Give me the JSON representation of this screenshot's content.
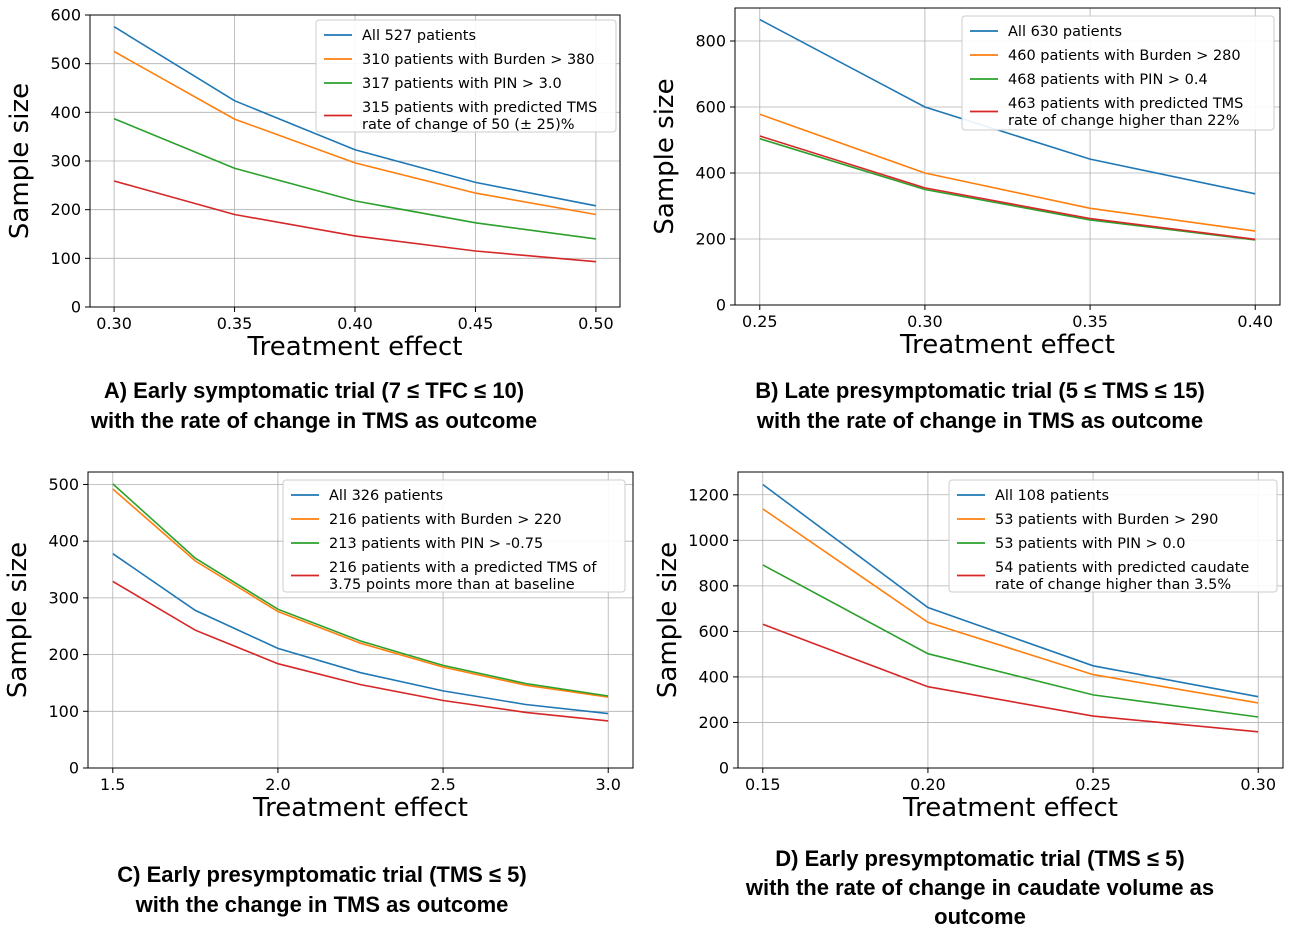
{
  "chart_data": [
    {
      "id": "A",
      "type": "line",
      "xlabel": "Treatment effect",
      "ylabel": "Sample size",
      "x": [
        0.3,
        0.35,
        0.4,
        0.45,
        0.5
      ],
      "xticks": [
        "0.30",
        "0.35",
        "0.40",
        "0.45",
        "0.50"
      ],
      "xlim": [
        0.29,
        0.51
      ],
      "yticks": [
        "0",
        "100",
        "200",
        "300",
        "400",
        "500",
        "600"
      ],
      "ylim": [
        0,
        600
      ],
      "grid": true,
      "legend_position": "top-right",
      "series": [
        {
          "name": "All 527 patients",
          "color": "#1f77b4",
          "values": [
            576,
            424,
            323,
            256,
            208
          ]
        },
        {
          "name": "310 patients with Burden > 380",
          "color": "#ff7f0e",
          "values": [
            525,
            386,
            296,
            234,
            190
          ]
        },
        {
          "name": "317 patients with PIN > 3.0",
          "color": "#2ca02c",
          "values": [
            387,
            285,
            218,
            173,
            140
          ]
        },
        {
          "name": "315 patients with predicted TMS\n rate of change of 50 (± 25)%",
          "color": "#d62728",
          "values": [
            259,
            190,
            146,
            115,
            93
          ]
        }
      ],
      "caption": [
        "A) Early symptomatic trial (7 ≤ TFC ≤ 10)",
        "with the rate of change in TMS as outcome"
      ]
    },
    {
      "id": "B",
      "type": "line",
      "xlabel": "Treatment effect",
      "ylabel": "Sample size",
      "x": [
        0.25,
        0.3,
        0.35,
        0.4
      ],
      "xticks": [
        "0.25",
        "0.30",
        "0.35",
        "0.40"
      ],
      "xlim": [
        0.2425,
        0.4075
      ],
      "yticks": [
        "0",
        "200",
        "400",
        "600",
        "800"
      ],
      "ylim": [
        0,
        900
      ],
      "grid": true,
      "legend_position": "top-right",
      "series": [
        {
          "name": "All 630 patients",
          "color": "#1f77b4",
          "values": [
            865,
            600,
            442,
            337
          ]
        },
        {
          "name": "460 patients with Burden > 280",
          "color": "#ff7f0e",
          "values": [
            578,
            400,
            293,
            224
          ]
        },
        {
          "name": "468 patients with PIN > 0.4",
          "color": "#2ca02c",
          "values": [
            504,
            350,
            258,
            197
          ]
        },
        {
          "name": "463 patients with predicted TMS\n rate of change higher than 22%",
          "color": "#d62728",
          "values": [
            512,
            355,
            262,
            199
          ]
        }
      ],
      "caption": [
        "B) Late presymptomatic trial (5 ≤ TMS ≤ 15)",
        "with the rate of change in TMS as outcome"
      ]
    },
    {
      "id": "C",
      "type": "line",
      "xlabel": "Treatment effect",
      "ylabel": "Sample size",
      "x": [
        1.5,
        1.75,
        2.0,
        2.25,
        2.5,
        2.75,
        3.0
      ],
      "xticks": [
        "1.5",
        "2.0",
        "2.5",
        "3.0"
      ],
      "xtick_values": [
        1.5,
        2.0,
        2.5,
        3.0
      ],
      "xlim": [
        1.425,
        3.075
      ],
      "yticks": [
        "0",
        "100",
        "200",
        "300",
        "400",
        "500"
      ],
      "ylim": [
        0,
        522
      ],
      "grid": true,
      "legend_position": "top-right",
      "series": [
        {
          "name": "All 326 patients",
          "color": "#1f77b4",
          "values": [
            378,
            278,
            211,
            168,
            136,
            112,
            96
          ]
        },
        {
          "name": "216 patients with Burden > 220",
          "color": "#ff7f0e",
          "values": [
            492,
            365,
            276,
            220,
            178,
            146,
            125
          ]
        },
        {
          "name": "213 patients with PIN > -0.75",
          "color": "#2ca02c",
          "values": [
            501,
            370,
            280,
            224,
            181,
            149,
            127
          ]
        },
        {
          "name": "216 patients with a predicted TMS of\n 3.75 points more than at baseline",
          "color": "#d62728",
          "values": [
            329,
            243,
            184,
            147,
            119,
            98,
            83
          ]
        }
      ],
      "caption": [
        "C) Early presymptomatic trial (TMS ≤ 5)",
        "with the change in TMS as outcome"
      ]
    },
    {
      "id": "D",
      "type": "line",
      "xlabel": "Treatment effect",
      "ylabel": "Sample size",
      "x": [
        0.15,
        0.2,
        0.25,
        0.3
      ],
      "xticks": [
        "0.15",
        "0.20",
        "0.25",
        "0.30"
      ],
      "xlim": [
        0.1425,
        0.3075
      ],
      "yticks": [
        "0",
        "200",
        "400",
        "600",
        "800",
        "1000",
        "1200"
      ],
      "ylim": [
        0,
        1300
      ],
      "grid": true,
      "legend_position": "top-right",
      "series": [
        {
          "name": "All 108 patients",
          "color": "#1f77b4",
          "values": [
            1245,
            705,
            449,
            313
          ]
        },
        {
          "name": "53 patients with Burden > 290",
          "color": "#ff7f0e",
          "values": [
            1138,
            640,
            410,
            286
          ]
        },
        {
          "name": "53 patients with PIN > 0.0",
          "color": "#2ca02c",
          "values": [
            892,
            502,
            321,
            224
          ]
        },
        {
          "name": "54 patients with predicted caudate\n rate of change higher than 3.5%",
          "color": "#d62728",
          "values": [
            631,
            357,
            228,
            159
          ]
        }
      ],
      "caption": [
        "D) Early presymptomatic trial (TMS ≤ 5)",
        "with the rate of change in caudate volume as",
        "outcome"
      ]
    }
  ]
}
